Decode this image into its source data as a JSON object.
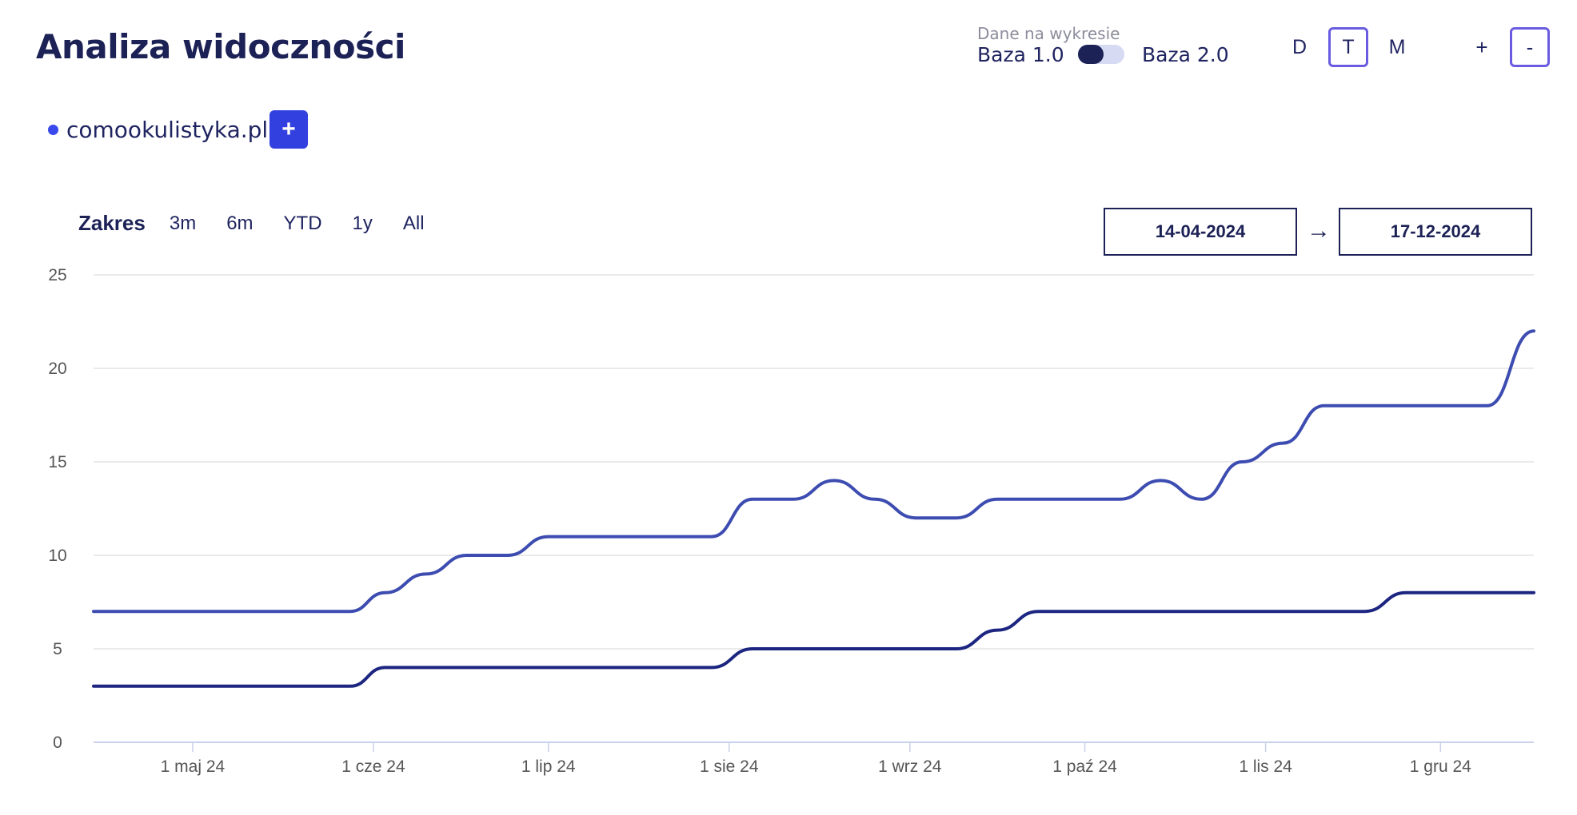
{
  "header": {
    "title": "Analiza widoczności",
    "toggle_caption": "Dane na wykresie",
    "toggle_left": "Baza 1.0",
    "toggle_right": "Baza 2.0",
    "granularity": [
      "D",
      "T",
      "M"
    ],
    "granularity_active": "T",
    "zoom_in": "+",
    "zoom_out": "-"
  },
  "legend": {
    "site": "comookulistyka.pl",
    "add_label": "+"
  },
  "range": {
    "label": "Zakres",
    "options": [
      "3m",
      "6m",
      "YTD",
      "1y",
      "All"
    ]
  },
  "dates": {
    "from": "14-04-2024",
    "arrow": "→",
    "to": "17-12-2024"
  },
  "colors": {
    "series_light": "#3d4cb0",
    "series_dark": "#1c2580",
    "accent": "#3240e0"
  },
  "chart_data": {
    "type": "line",
    "ylim": [
      0,
      25
    ],
    "yticks": [
      0,
      5,
      10,
      15,
      20,
      25
    ],
    "xlim": [
      "2024-04-14",
      "2024-12-17"
    ],
    "xticks": [
      {
        "date": "2024-05-01",
        "label": "1 maj 24"
      },
      {
        "date": "2024-06-01",
        "label": "1 cze 24"
      },
      {
        "date": "2024-07-01",
        "label": "1 lip 24"
      },
      {
        "date": "2024-08-01",
        "label": "1 sie 24"
      },
      {
        "date": "2024-09-01",
        "label": "1 wrz 24"
      },
      {
        "date": "2024-10-01",
        "label": "1 paź 24"
      },
      {
        "date": "2024-11-01",
        "label": "1 lis 24"
      },
      {
        "date": "2024-12-01",
        "label": "1 gru 24"
      }
    ],
    "grid": true,
    "series": [
      {
        "x": [
          "2024-04-14",
          "2024-05-28",
          "2024-06-03",
          "2024-06-10",
          "2024-06-17",
          "2024-06-24",
          "2024-07-01",
          "2024-07-08",
          "2024-07-15",
          "2024-07-22",
          "2024-07-29",
          "2024-08-05",
          "2024-08-12",
          "2024-08-19",
          "2024-08-26",
          "2024-09-02",
          "2024-09-09",
          "2024-09-16",
          "2024-09-23",
          "2024-09-30",
          "2024-10-07",
          "2024-10-14",
          "2024-10-21",
          "2024-10-28",
          "2024-11-04",
          "2024-11-11",
          "2024-11-18",
          "2024-11-25",
          "2024-12-02",
          "2024-12-09",
          "2024-12-17"
        ],
        "y": [
          7,
          7,
          8,
          9,
          10,
          10,
          11,
          11,
          11,
          11,
          11,
          13,
          13,
          14,
          13,
          12,
          12,
          13,
          13,
          13,
          13,
          14,
          13,
          15,
          16,
          18,
          18,
          18,
          18,
          18,
          22
        ]
      },
      {
        "x": [
          "2024-04-14",
          "2024-05-28",
          "2024-06-03",
          "2024-06-10",
          "2024-07-01",
          "2024-07-29",
          "2024-08-05",
          "2024-08-12",
          "2024-09-02",
          "2024-09-09",
          "2024-09-16",
          "2024-09-23",
          "2024-09-30",
          "2024-10-07",
          "2024-10-14",
          "2024-10-21",
          "2024-11-11",
          "2024-11-18",
          "2024-11-25",
          "2024-12-02",
          "2024-12-17"
        ],
        "y": [
          3,
          3,
          4,
          4,
          4,
          4,
          5,
          5,
          5,
          5,
          6,
          7,
          7,
          7,
          7,
          7,
          7,
          7,
          8,
          8,
          8
        ]
      }
    ]
  }
}
